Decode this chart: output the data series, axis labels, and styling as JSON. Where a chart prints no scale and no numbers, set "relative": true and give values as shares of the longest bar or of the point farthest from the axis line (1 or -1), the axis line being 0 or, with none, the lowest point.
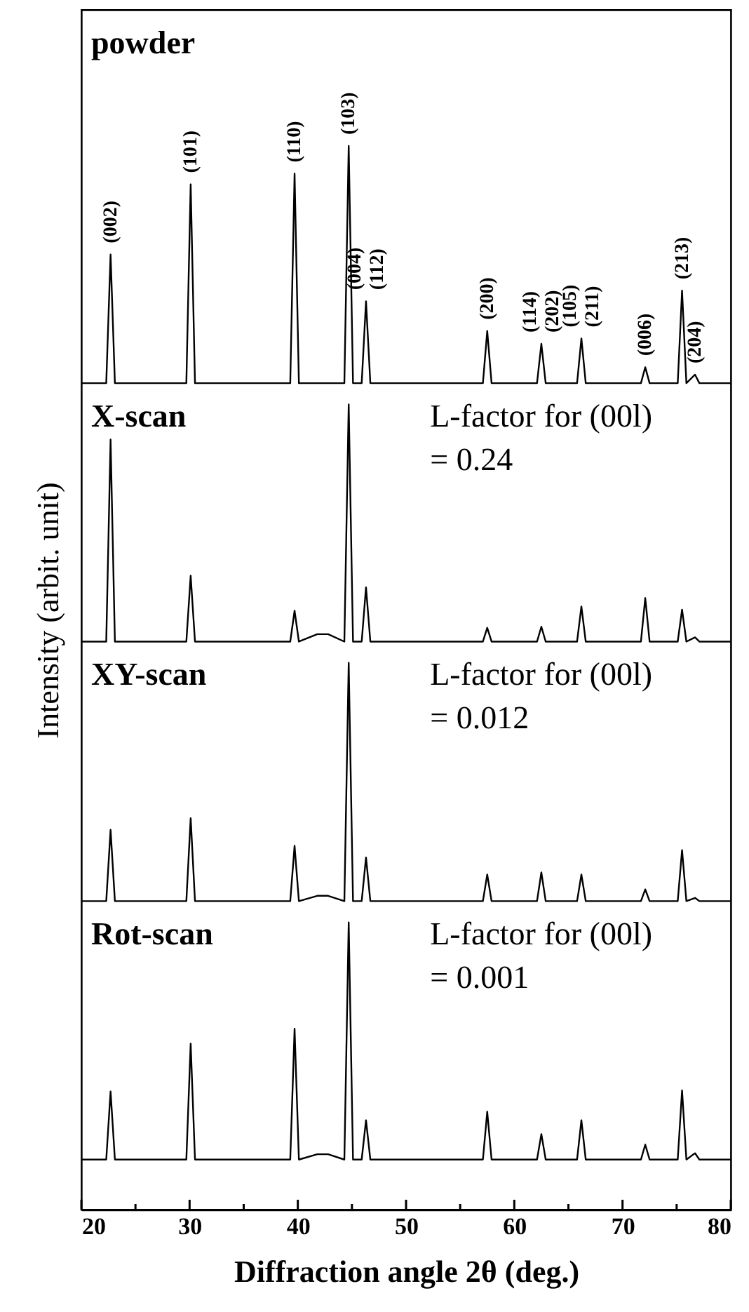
{
  "chart_data": {
    "type": "line",
    "relative": true,
    "xlabel": "Diffraction angle 2θ (deg.)",
    "ylabel": "Intensity (arbit. unit)",
    "xlim": [
      20,
      80
    ],
    "xticks": [
      20,
      {
        "value": 25,
        "label": null
      },
      30,
      {
        "value": 35,
        "label": null
      },
      40,
      {
        "value": 45,
        "label": null
      },
      50,
      {
        "value": 55,
        "label": null
      },
      60,
      {
        "value": 65,
        "label": null
      },
      70,
      {
        "value": 75,
        "label": null
      },
      80
    ],
    "grid": false,
    "tick_labels": "x",
    "marker": "none",
    "line_style": "solid",
    "x": [
      20,
      22.3,
      22.7,
      23.1,
      29.7,
      30.1,
      30.5,
      39.3,
      39.7,
      40.1,
      41.8,
      42.8,
      44.3,
      44.7,
      45.1,
      45.9,
      46.3,
      46.7,
      57.1,
      57.5,
      57.9,
      62.1,
      62.5,
      62.9,
      65.8,
      66.2,
      66.6,
      71.7,
      72.1,
      72.5,
      75.1,
      75.5,
      75.9,
      76.7,
      77.1,
      80
    ],
    "series": [
      {
        "color": "#000000",
        "values": [
          0.777,
          0.777,
          0.898,
          0.777,
          0.777,
          0.964,
          0.777,
          0.777,
          0.974,
          0.777,
          0.777,
          0.777,
          0.777,
          1.0,
          0.777,
          0.777,
          0.854,
          0.777,
          0.777,
          0.826,
          0.777,
          0.777,
          0.814,
          0.777,
          0.777,
          0.819,
          0.777,
          0.777,
          0.792,
          0.777,
          0.777,
          0.864,
          0.777,
          0.785,
          0.777,
          0.777
        ]
      },
      {
        "color": "#000000",
        "values": [
          0.534,
          0.534,
          0.724,
          0.534,
          0.534,
          0.596,
          0.534,
          0.534,
          0.563,
          0.534,
          0.541,
          0.541,
          0.534,
          0.757,
          0.534,
          0.534,
          0.585,
          0.534,
          0.534,
          0.547,
          0.534,
          0.534,
          0.548,
          0.534,
          0.534,
          0.567,
          0.534,
          0.534,
          0.575,
          0.534,
          0.534,
          0.564,
          0.534,
          0.538,
          0.534,
          0.534
        ]
      },
      {
        "color": "#000000",
        "values": [
          0.29,
          0.29,
          0.357,
          0.29,
          0.29,
          0.368,
          0.29,
          0.29,
          0.342,
          0.29,
          0.295,
          0.295,
          0.29,
          0.514,
          0.29,
          0.29,
          0.331,
          0.29,
          0.29,
          0.315,
          0.29,
          0.29,
          0.317,
          0.29,
          0.29,
          0.315,
          0.29,
          0.29,
          0.301,
          0.29,
          0.29,
          0.338,
          0.29,
          0.293,
          0.29,
          0.29
        ]
      },
      {
        "color": "#000000",
        "values": [
          0.047,
          0.047,
          0.111,
          0.047,
          0.047,
          0.156,
          0.047,
          0.047,
          0.17,
          0.047,
          0.052,
          0.052,
          0.047,
          0.27,
          0.047,
          0.047,
          0.084,
          0.047,
          0.047,
          0.092,
          0.047,
          0.047,
          0.071,
          0.047,
          0.047,
          0.084,
          0.047,
          0.047,
          0.061,
          0.047,
          0.047,
          0.112,
          0.047,
          0.053,
          0.047,
          0.047
        ]
      }
    ],
    "annotations": [
      "powder",
      "X-scan",
      "L-factor for (00l)\n= 0.24",
      "XY-scan",
      "L-factor for (00l)\n= 0.012",
      "Rot-scan",
      "L-factor for (00l)\n= 0.001",
      {
        "text": "(002)",
        "x": 22.7,
        "y": 0.898
      },
      {
        "text": "(101)",
        "x": 30.1,
        "y": 0.964
      },
      {
        "text": "(110)",
        "x": 39.7,
        "y": 0.974
      },
      {
        "text": "(103)",
        "x": 44.7,
        "y": 1.0
      },
      {
        "text": "(004)",
        "x": 46.3,
        "y": 0.854
      },
      {
        "text": "(112)",
        "x": 46.3,
        "y": 0.854
      },
      {
        "text": "(200)",
        "x": 57.5,
        "y": 0.826
      },
      {
        "text": "(114)",
        "x": 62.5,
        "y": 0.814
      },
      {
        "text": "(202)",
        "x": 62.5,
        "y": 0.814
      },
      {
        "text": "(105)",
        "x": 66.2,
        "y": 0.819
      },
      {
        "text": "(211)",
        "x": 66.2,
        "y": 0.819
      },
      {
        "text": "(006)",
        "x": 72.1,
        "y": 0.792
      },
      {
        "text": "(213)",
        "x": 75.5,
        "y": 0.864
      },
      {
        "text": "(204)",
        "x": 76.7,
        "y": 0.785
      }
    ]
  }
}
